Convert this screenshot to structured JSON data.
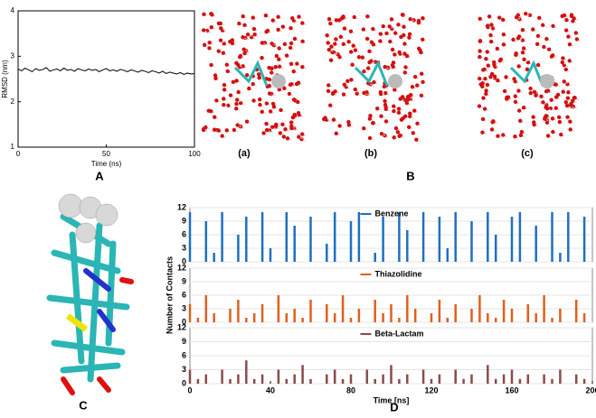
{
  "panels": {
    "A": "A",
    "B": "B",
    "C": "C",
    "D": "D",
    "a": "(a)",
    "b": "(b)",
    "c": "(c)"
  },
  "chart_data": [
    {
      "type": "line",
      "xlabel": "Time (ns)",
      "ylabel": "RMSD (nm)",
      "color": "#000000",
      "xlim": [
        0,
        100
      ],
      "ylim": [
        1,
        4
      ],
      "xticks": [
        0,
        50,
        100
      ],
      "yticks": [
        1,
        2,
        3,
        4
      ],
      "x": [
        0,
        2,
        4,
        6,
        8,
        10,
        12,
        14,
        16,
        18,
        20,
        22,
        24,
        26,
        28,
        30,
        32,
        34,
        36,
        38,
        40,
        42,
        44,
        46,
        48,
        50,
        52,
        54,
        56,
        58,
        60,
        62,
        64,
        66,
        68,
        70,
        72,
        74,
        76,
        78,
        80,
        82,
        84,
        86,
        88,
        90,
        92,
        94,
        96,
        98,
        100
      ],
      "values": [
        2.72,
        2.68,
        2.74,
        2.7,
        2.66,
        2.73,
        2.69,
        2.71,
        2.75,
        2.67,
        2.7,
        2.72,
        2.68,
        2.74,
        2.69,
        2.71,
        2.67,
        2.73,
        2.7,
        2.68,
        2.72,
        2.69,
        2.71,
        2.66,
        2.7,
        2.73,
        2.68,
        2.7,
        2.67,
        2.71,
        2.69,
        2.66,
        2.7,
        2.68,
        2.65,
        2.69,
        2.67,
        2.64,
        2.68,
        2.66,
        2.63,
        2.67,
        2.62,
        2.65,
        2.63,
        2.61,
        2.64,
        2.6,
        2.63,
        2.61,
        2.62
      ]
    },
    {
      "type": "spike",
      "xlim": [
        0,
        200
      ],
      "ylim": [
        0,
        12
      ],
      "yticks": [
        0,
        3,
        6,
        9,
        12
      ],
      "x": [
        0,
        4,
        8,
        12,
        16,
        20,
        24,
        28,
        32,
        36,
        40,
        44,
        48,
        52,
        56,
        60,
        64,
        68,
        72,
        76,
        80,
        84,
        88,
        92,
        96,
        100,
        104,
        108,
        112,
        116,
        120,
        124,
        128,
        132,
        136,
        140,
        144,
        148,
        152,
        156,
        160,
        164,
        168,
        172,
        176,
        180,
        184,
        188,
        192,
        196
      ],
      "series": [
        {
          "name": "Benzene",
          "color": "#1f6fbf",
          "values": [
            11,
            0,
            9,
            2,
            11,
            0,
            6,
            10,
            0,
            11,
            3,
            0,
            11,
            8,
            0,
            10,
            0,
            4,
            11,
            0,
            9,
            11,
            0,
            2,
            10,
            0,
            11,
            7,
            0,
            11,
            0,
            10,
            3,
            11,
            0,
            9,
            0,
            11,
            6,
            0,
            10,
            11,
            0,
            8,
            0,
            11,
            2,
            11,
            0,
            10
          ]
        }
      ]
    },
    {
      "type": "spike",
      "ylabel": "Number of Contacts",
      "xlim": [
        0,
        200
      ],
      "ylim": [
        0,
        12
      ],
      "yticks": [
        0,
        3,
        6,
        9,
        12
      ],
      "x": [
        0,
        4,
        8,
        12,
        16,
        20,
        24,
        28,
        32,
        36,
        40,
        44,
        48,
        52,
        56,
        60,
        64,
        68,
        72,
        76,
        80,
        84,
        88,
        92,
        96,
        100,
        104,
        108,
        112,
        116,
        120,
        124,
        128,
        132,
        136,
        140,
        144,
        148,
        152,
        156,
        160,
        164,
        168,
        172,
        176,
        180,
        184,
        188,
        192,
        196
      ],
      "series": [
        {
          "name": "Thiazolidine",
          "color": "#e0601c",
          "values": [
            4,
            1,
            6,
            2,
            0,
            3,
            5,
            1,
            2,
            4,
            0,
            6,
            2,
            3,
            1,
            5,
            0,
            4,
            2,
            6,
            1,
            3,
            0,
            5,
            2,
            4,
            1,
            6,
            3,
            0,
            2,
            5,
            1,
            4,
            0,
            3,
            6,
            2,
            1,
            5,
            3,
            0,
            4,
            2,
            6,
            1,
            3,
            0,
            5,
            2
          ]
        }
      ]
    },
    {
      "type": "spike",
      "xlabel": "Time [ns]",
      "xlim": [
        0,
        200
      ],
      "ylim": [
        0,
        12
      ],
      "yticks": [
        0,
        3,
        6,
        9,
        12
      ],
      "xticks": [
        0,
        40,
        80,
        120,
        160,
        200
      ],
      "x": [
        0,
        4,
        8,
        12,
        16,
        20,
        24,
        28,
        32,
        36,
        40,
        44,
        48,
        52,
        56,
        60,
        64,
        68,
        72,
        76,
        80,
        84,
        88,
        92,
        96,
        100,
        104,
        108,
        112,
        116,
        120,
        124,
        128,
        132,
        136,
        140,
        144,
        148,
        152,
        156,
        160,
        164,
        168,
        172,
        176,
        180,
        184,
        188,
        192,
        196
      ],
      "series": [
        {
          "name": "Beta-Lactam",
          "color": "#8a4b4b",
          "values": [
            3,
            1,
            2,
            0,
            3,
            1,
            2,
            5,
            1,
            2,
            0,
            3,
            1,
            2,
            4,
            1,
            0,
            2,
            3,
            1,
            2,
            0,
            3,
            1,
            2,
            4,
            1,
            2,
            0,
            3,
            1,
            2,
            0,
            3,
            1,
            2,
            0,
            4,
            1,
            2,
            3,
            1,
            2,
            0,
            2,
            1,
            3,
            0,
            2,
            1
          ]
        }
      ]
    }
  ]
}
